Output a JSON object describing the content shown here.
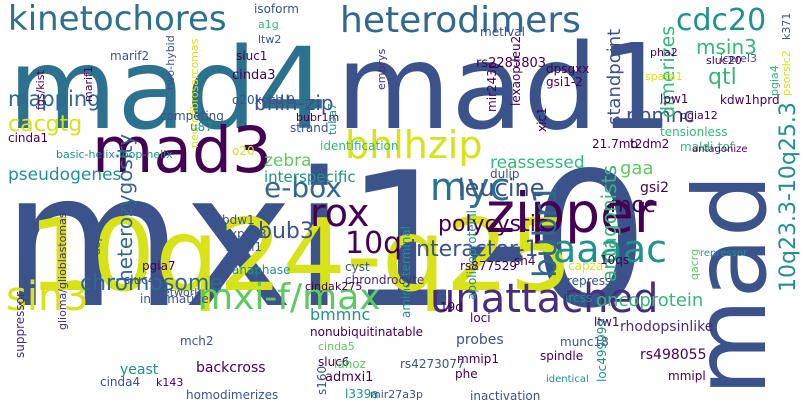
{
  "words": [
    "mxi1-0",
    "mad4",
    "mad1",
    "mad",
    "10q24-q25",
    "mad3",
    "zipper",
    "bhlhzip",
    "unattached",
    "mxi-f/max",
    "sin3",
    "aaaac",
    "myc",
    "rox",
    "heterodimers",
    "kinetochores",
    "cdc20",
    "10q",
    "bubr1",
    "10q23.3-10q25.3",
    "oncoprotein",
    "chromosome",
    "e-box",
    "bub3",
    "interactor-1",
    "polycystic",
    "leucine",
    "mcc",
    "antagonists",
    "reassessed",
    "cacgtg",
    "mapping",
    "pseudogenes",
    "bhlh-zip",
    "zebra",
    "interspecific",
    "heterozygosity",
    "pbmnc",
    "msin3",
    "qtl",
    "dimerizes",
    "standpoint",
    "gaa",
    "lpw1",
    "kdw1",
    "hprd",
    "pgia12",
    "tensionless",
    "21.7mb",
    "t2dm2",
    "maldi-tof",
    "gsi2",
    "rs2285803",
    "dpsgxx",
    "gsi1-2",
    "lexaop-leu2",
    "mir243p",
    "xic1",
    "metlval",
    "isoform",
    "a1g",
    "ltw2",
    "sluc1",
    "cinda3",
    "marif2",
    "marif1",
    "fgs/kist",
    "two-hybid",
    "neurofibrosarcomas",
    "o20xocb-9",
    "competing",
    "u87",
    "bubr1m",
    "strand",
    "tuba7",
    "identification",
    "o20",
    "cinda1",
    "basic-helix-loop-helix",
    "bdw1",
    "xpak3",
    "zmxi1",
    "pgia7",
    "sluc4",
    "aop1",
    "glioma/glioblastomas",
    "suppressor",
    "anaphase",
    "informative",
    "network",
    "mch2",
    "bmmnc",
    "nonubiquitinatable",
    "cinda5",
    "sluc6",
    "probes",
    "mmip1",
    "admxi1",
    "lahoz",
    "s160",
    "l339a",
    "phe",
    "mir27a3p",
    "rs4273077",
    "inactivation",
    "identical",
    "backcross",
    "homodimerizes",
    "k143",
    "cinda4",
    "yeast",
    "spindle",
    "munc18",
    "ltw1",
    "rhodopsinlike",
    "rs498055",
    "mmipl",
    "loc499999",
    "apolipoproteinl",
    "amino-terminal",
    "chrondrocyte",
    "cyst",
    "19d",
    "loci",
    "repress",
    "ircss",
    "10qs",
    "capza",
    "rs877529",
    "sh4",
    "dulip",
    "cinda",
    "k275",
    "qacrg",
    "icerel3",
    "pha2",
    "spata1",
    "pgia4",
    "k371",
    "embrys",
    "sluc20",
    "psorslc2",
    "repressor",
    "antagonize"
  ]
}
